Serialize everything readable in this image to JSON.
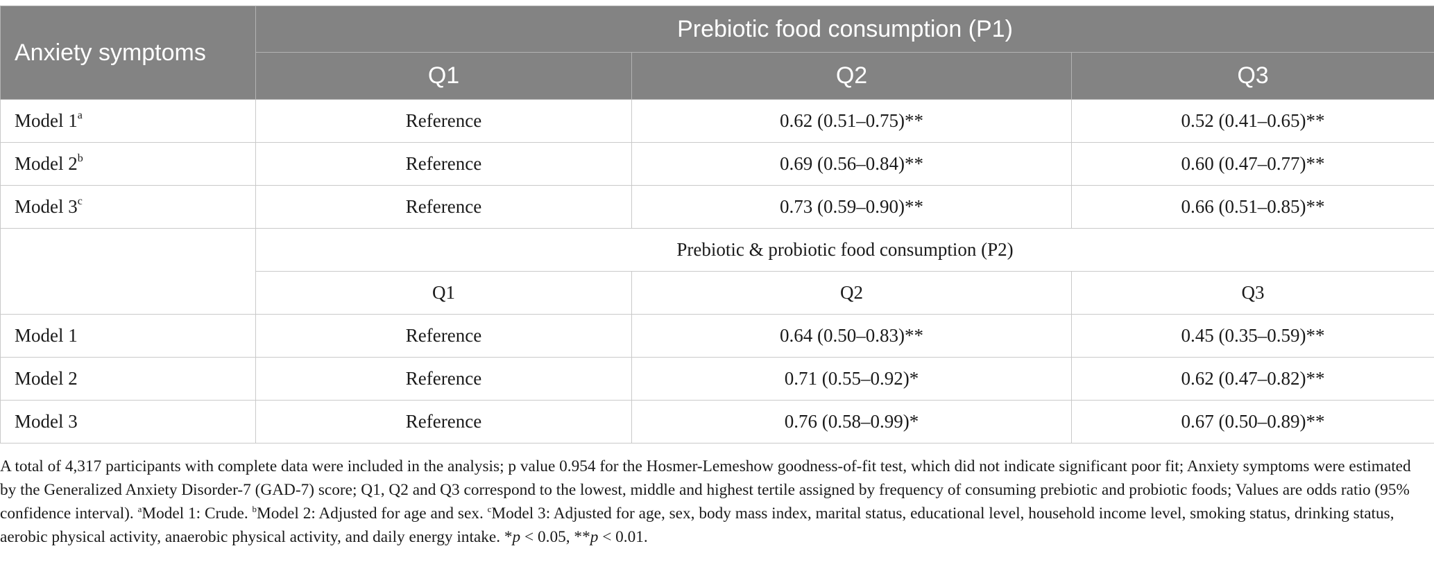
{
  "table": {
    "corner_header": "Anxiety symptoms",
    "group1_header": "Prebiotic food consumption (P1)",
    "group2_header": "Prebiotic & probiotic food consumption (P2)",
    "quantiles": [
      "Q1",
      "Q2",
      "Q3"
    ],
    "group1_rows": [
      {
        "label": "Model 1",
        "sup": "a",
        "q1": "Reference",
        "q2": "0.62 (0.51–0.75)**",
        "q3": "0.52 (0.41–0.65)**"
      },
      {
        "label": "Model 2",
        "sup": "b",
        "q1": "Reference",
        "q2": "0.69 (0.56–0.84)**",
        "q3": "0.60 (0.47–0.77)**"
      },
      {
        "label": "Model 3",
        "sup": "c",
        "q1": "Reference",
        "q2": "0.73 (0.59–0.90)**",
        "q3": "0.66 (0.51–0.85)**"
      }
    ],
    "group2_rows": [
      {
        "label": "Model 1",
        "q1": "Reference",
        "q2": "0.64 (0.50–0.83)**",
        "q3": "0.45 (0.35–0.59)**"
      },
      {
        "label": "Model 2",
        "q1": "Reference",
        "q2": "0.71 (0.55–0.92)*",
        "q3": "0.62 (0.47–0.82)**"
      },
      {
        "label": "Model 3",
        "q1": "Reference",
        "q2": "0.76 (0.58–0.99)*",
        "q3": "0.67 (0.50–0.89)**"
      }
    ]
  },
  "footnote": {
    "main": "A total of 4,317 participants with complete data were included in the analysis; p value 0.954 for the Hosmer-Lemeshow goodness-of-fit test, which did not indicate significant poor fit; Anxiety symptoms were estimated by the Generalized Anxiety Disorder-7 (GAD-7) score; Q1, Q2 and Q3 correspond to the lowest, middle and highest tertile assigned by frequency of consuming prebiotic and probiotic foods; Values are odds ratio (95% confidence interval). ",
    "sup_a": "a",
    "note_a": "Model 1: Crude. ",
    "sup_b": "b",
    "note_b": "Model 2: Adjusted for age and sex. ",
    "sup_c": "c",
    "note_c": "Model 3: Adjusted for age, sex, body mass index, marital status, educational level, household income level, smoking status, drinking status, aerobic physical activity, anaerobic physical activity, and daily energy intake. ",
    "sig1_star": "*",
    "sig1_p": "p",
    "sig1_rest": " < 0.05, ",
    "sig2_star": "**",
    "sig2_p": "p",
    "sig2_rest": " < 0.01."
  }
}
